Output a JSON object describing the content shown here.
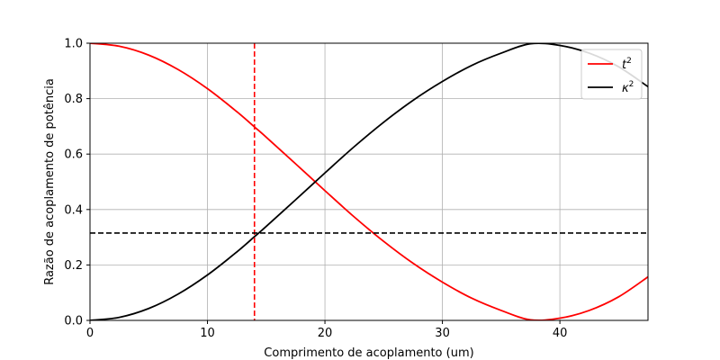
{
  "chart_data": {
    "type": "line",
    "title": "",
    "xlabel": "Comprimento de acoplamento (um)",
    "ylabel": "Razão de acoplamento de potência",
    "xlim": [
      0,
      47.5
    ],
    "ylim": [
      0,
      1.0
    ],
    "xticks": [
      0,
      10,
      20,
      30,
      40
    ],
    "xtick_labels": [
      "0",
      "10",
      "20",
      "30",
      "40"
    ],
    "yticks": [
      0.0,
      0.2,
      0.4,
      0.6,
      0.8,
      1.0
    ],
    "ytick_labels": [
      "0.0",
      "0.2",
      "0.4",
      "0.6",
      "0.8",
      "1.0"
    ],
    "grid": true,
    "legend_position": "top-right",
    "series": [
      {
        "name": "t²",
        "legend_base": "t",
        "legend_sup": "2",
        "color": "#ff0000",
        "x": [
          0,
          2.5,
          5,
          7.5,
          10,
          12.5,
          14,
          15,
          17.5,
          20,
          22.5,
          25,
          27.5,
          30,
          32.5,
          35,
          37.5,
          40,
          42.5,
          45,
          47.5
        ],
        "y": [
          1.0,
          0.989,
          0.957,
          0.905,
          0.836,
          0.753,
          0.698,
          0.661,
          0.565,
          0.468,
          0.373,
          0.285,
          0.206,
          0.138,
          0.08,
          0.036,
          0.002,
          0.008,
          0.036,
          0.085,
          0.157
        ]
      },
      {
        "name": "κ²",
        "legend_base": "κ",
        "legend_sup": "2",
        "color": "#000000",
        "x": [
          0,
          2.5,
          5,
          7.5,
          10,
          12.5,
          14,
          15,
          17.5,
          20,
          22.5,
          25,
          27.5,
          30,
          32.5,
          35,
          37.5,
          40,
          42.5,
          45,
          47.5
        ],
        "y": [
          0.0,
          0.011,
          0.043,
          0.095,
          0.164,
          0.247,
          0.302,
          0.339,
          0.435,
          0.532,
          0.627,
          0.715,
          0.794,
          0.862,
          0.92,
          0.964,
          0.998,
          0.992,
          0.964,
          0.915,
          0.843
        ]
      }
    ],
    "reference_lines": [
      {
        "orientation": "vertical",
        "x": 14,
        "color": "#ff0000",
        "style": "dashed"
      },
      {
        "orientation": "horizontal",
        "y": 0.315,
        "color": "#000000",
        "style": "dashed"
      }
    ]
  }
}
